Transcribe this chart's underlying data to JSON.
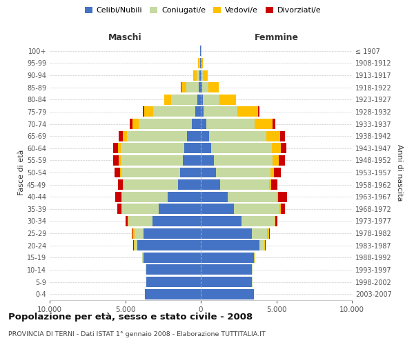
{
  "age_groups": [
    "0-4",
    "5-9",
    "10-14",
    "15-19",
    "20-24",
    "25-29",
    "30-34",
    "35-39",
    "40-44",
    "45-49",
    "50-54",
    "55-59",
    "60-64",
    "65-69",
    "70-74",
    "75-79",
    "80-84",
    "85-89",
    "90-94",
    "95-99",
    "100+"
  ],
  "birth_years": [
    "2003-2007",
    "1998-2002",
    "1993-1997",
    "1988-1992",
    "1983-1987",
    "1978-1982",
    "1973-1977",
    "1968-1972",
    "1963-1967",
    "1958-1962",
    "1953-1957",
    "1948-1952",
    "1943-1947",
    "1938-1942",
    "1933-1937",
    "1928-1932",
    "1923-1927",
    "1918-1922",
    "1913-1917",
    "1908-1912",
    "≤ 1907"
  ],
  "colors": {
    "celibi": "#4472c4",
    "coniugati": "#c5d9a0",
    "vedovi": "#ffc000",
    "divorziati": "#cc0000"
  },
  "maschi": {
    "celibi": [
      3700,
      3600,
      3600,
      3800,
      4200,
      3800,
      3200,
      2800,
      2200,
      1500,
      1350,
      1200,
      1100,
      900,
      600,
      350,
      250,
      150,
      80,
      50,
      30
    ],
    "coniugati": [
      5,
      10,
      40,
      80,
      200,
      600,
      1600,
      2400,
      3000,
      3600,
      3900,
      4100,
      4200,
      4000,
      3500,
      2800,
      1700,
      800,
      200,
      60,
      20
    ],
    "vedovi": [
      2,
      2,
      5,
      10,
      30,
      100,
      20,
      40,
      50,
      80,
      100,
      150,
      200,
      250,
      400,
      600,
      450,
      350,
      200,
      50,
      10
    ],
    "divorziati": [
      2,
      2,
      5,
      10,
      30,
      50,
      150,
      300,
      400,
      300,
      350,
      350,
      300,
      300,
      200,
      100,
      40,
      20,
      10,
      5,
      2
    ]
  },
  "femmine": {
    "celibi": [
      3500,
      3400,
      3400,
      3500,
      3900,
      3400,
      2700,
      2200,
      1800,
      1300,
      1000,
      850,
      700,
      550,
      350,
      200,
      120,
      80,
      50,
      30,
      20
    ],
    "coniugati": [
      5,
      10,
      30,
      80,
      300,
      1000,
      2200,
      3000,
      3200,
      3200,
      3600,
      3900,
      4000,
      3800,
      3200,
      2200,
      1100,
      400,
      100,
      30,
      10
    ],
    "vedovi": [
      2,
      5,
      10,
      20,
      50,
      100,
      40,
      80,
      120,
      150,
      250,
      400,
      600,
      900,
      1200,
      1400,
      1100,
      700,
      300,
      80,
      15
    ],
    "divorziati": [
      2,
      2,
      5,
      10,
      40,
      50,
      150,
      300,
      600,
      400,
      450,
      400,
      350,
      300,
      200,
      100,
      30,
      15,
      10,
      5,
      1
    ]
  },
  "xlim": 10000,
  "title": "Popolazione per età, sesso e stato civile - 2008",
  "subtitle": "PROVINCIA DI TERNI - Dati ISTAT 1° gennaio 2008 - Elaborazione TUTTITALIA.IT",
  "ylabel_left": "Fasce di età",
  "ylabel_right": "Anni di nascita",
  "xlabel_left": "Maschi",
  "xlabel_right": "Femmine",
  "legend_labels": [
    "Celibi/Nubili",
    "Coniugati/e",
    "Vedovi/e",
    "Divorziati/e"
  ],
  "background_color": "#ffffff",
  "grid_color": "#cccccc"
}
